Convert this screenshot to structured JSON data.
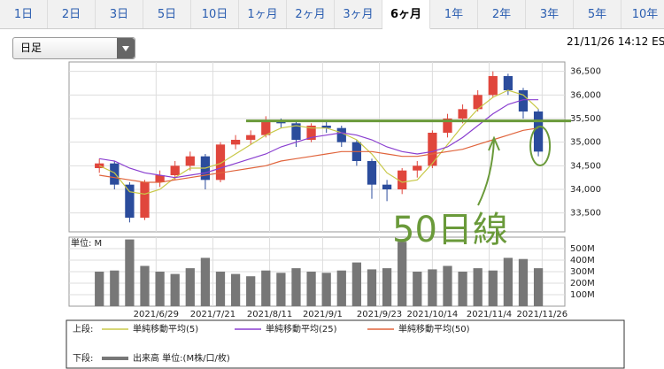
{
  "tabs": [
    "1日",
    "2日",
    "3日",
    "5日",
    "10日",
    "1ヶ月",
    "2ヶ月",
    "3ヶ月",
    "6ヶ月",
    "1年",
    "2年",
    "3年",
    "5年",
    "10年"
  ],
  "selected_tab": 8,
  "dropdown": "日足",
  "timestamp": "21/11/26 14:12 ES",
  "chart_data": {
    "type": "candlestick",
    "x": [
      7,
      11,
      15,
      19,
      23,
      27,
      31,
      35,
      39,
      43,
      47,
      51,
      55,
      59,
      63,
      67,
      71,
      75,
      79,
      83,
      87,
      91,
      95,
      99,
      103,
      107,
      111,
      115,
      119,
      123
    ],
    "xlim": [
      -1,
      130
    ],
    "xticks": [
      {
        "value": 22,
        "label": "2021/6/29"
      },
      {
        "value": 37,
        "label": "2021/7/21"
      },
      {
        "value": 52,
        "label": "2021/8/11"
      },
      {
        "value": 66,
        "label": "2021/9/1"
      },
      {
        "value": 81,
        "label": "2021/9/23"
      },
      {
        "value": 95,
        "label": "2021/10/14"
      },
      {
        "value": 110,
        "label": "2021/11/4"
      },
      {
        "value": 124,
        "label": "2021/11/26"
      }
    ],
    "ylim": [
      33100,
      36700
    ],
    "yticks": [
      {
        "value": 33500,
        "label": "33,500"
      },
      {
        "value": 34000,
        "label": "34,000"
      },
      {
        "value": 34500,
        "label": "34,500"
      },
      {
        "value": 35000,
        "label": "35,000"
      },
      {
        "value": 35500,
        "label": "35,500"
      },
      {
        "value": 36000,
        "label": "36,000"
      },
      {
        "value": 36500,
        "label": "36,500"
      }
    ],
    "grid": true,
    "up_color": "#e0463c",
    "down_color": "#2b4c9c",
    "open": [
      34450,
      34550,
      34100,
      33400,
      34150,
      34300,
      34500,
      34700,
      34200,
      34950,
      35050,
      35150,
      35450,
      35400,
      35050,
      35350,
      35300,
      35000,
      34600,
      34100,
      34000,
      34400,
      34500,
      35200,
      35500,
      35700,
      36000,
      36400,
      36100,
      35650
    ],
    "high": [
      34650,
      34600,
      34150,
      34200,
      34400,
      34600,
      34800,
      34750,
      35000,
      35150,
      35250,
      35550,
      35500,
      35450,
      35400,
      35450,
      35350,
      35050,
      34650,
      34200,
      34450,
      34600,
      35250,
      35600,
      35800,
      36100,
      36500,
      36450,
      36150,
      35700
    ],
    "low": [
      34350,
      34000,
      33300,
      33350,
      34050,
      34200,
      34400,
      34000,
      34150,
      34850,
      34950,
      35100,
      35300,
      34900,
      35000,
      35200,
      34900,
      34500,
      33800,
      33750,
      33900,
      34250,
      34450,
      35100,
      35400,
      35650,
      35950,
      36000,
      35500,
      34700
    ],
    "close": [
      34550,
      34100,
      33400,
      34150,
      34300,
      34500,
      34700,
      34200,
      34950,
      35050,
      35150,
      35450,
      35400,
      35050,
      35350,
      35300,
      35000,
      34600,
      34100,
      34000,
      34400,
      34500,
      35200,
      35500,
      35700,
      36000,
      36400,
      36100,
      35650,
      34800
    ],
    "series": [
      {
        "name": "単純移動平均(5)",
        "color": "#c8c848",
        "values": [
          34500,
          34350,
          33950,
          33900,
          34000,
          34250,
          34450,
          34450,
          34550,
          34750,
          34950,
          35150,
          35300,
          35350,
          35300,
          35300,
          35200,
          35050,
          34750,
          34350,
          34150,
          34200,
          34550,
          34950,
          35350,
          35700,
          35950,
          36100,
          36000,
          35700
        ]
      },
      {
        "name": "単純移動平均(25)",
        "color": "#8a3fd0",
        "values": [
          34650,
          34600,
          34450,
          34350,
          34300,
          34250,
          34300,
          34350,
          34450,
          34550,
          34650,
          34750,
          34900,
          35000,
          35100,
          35150,
          35200,
          35150,
          35050,
          34900,
          34800,
          34750,
          34800,
          34900,
          35100,
          35350,
          35600,
          35800,
          35900,
          35900
        ]
      },
      {
        "name": "単純移動平均(50)",
        "color": "#e0643c",
        "values": [
          34300,
          34250,
          34200,
          34150,
          34150,
          34200,
          34250,
          34300,
          34350,
          34400,
          34450,
          34500,
          34600,
          34650,
          34700,
          34750,
          34800,
          34800,
          34800,
          34750,
          34700,
          34700,
          34750,
          34800,
          34850,
          34950,
          35050,
          35150,
          35250,
          35300
        ]
      }
    ],
    "annotation": {
      "text": "50日線",
      "level": 35450,
      "color": "#6a9a3a"
    },
    "volume": {
      "label": "単位: M",
      "name": "出来高 単位:(M株/口/枚)",
      "color": "#777777",
      "values": [
        300,
        310,
        580,
        350,
        300,
        280,
        330,
        420,
        300,
        280,
        260,
        310,
        290,
        330,
        300,
        290,
        310,
        380,
        320,
        330,
        560,
        300,
        320,
        350,
        300,
        330,
        310,
        420,
        410,
        330
      ],
      "ylim": [
        0,
        600
      ],
      "yticks": [
        {
          "value": 100,
          "label": "100M"
        },
        {
          "value": 200,
          "label": "200M"
        },
        {
          "value": 300,
          "label": "300M"
        },
        {
          "value": 400,
          "label": "400M"
        },
        {
          "value": 500,
          "label": "500M"
        }
      ]
    },
    "legend": {
      "upper_label": "上段:",
      "lower_label": "下段:"
    }
  }
}
